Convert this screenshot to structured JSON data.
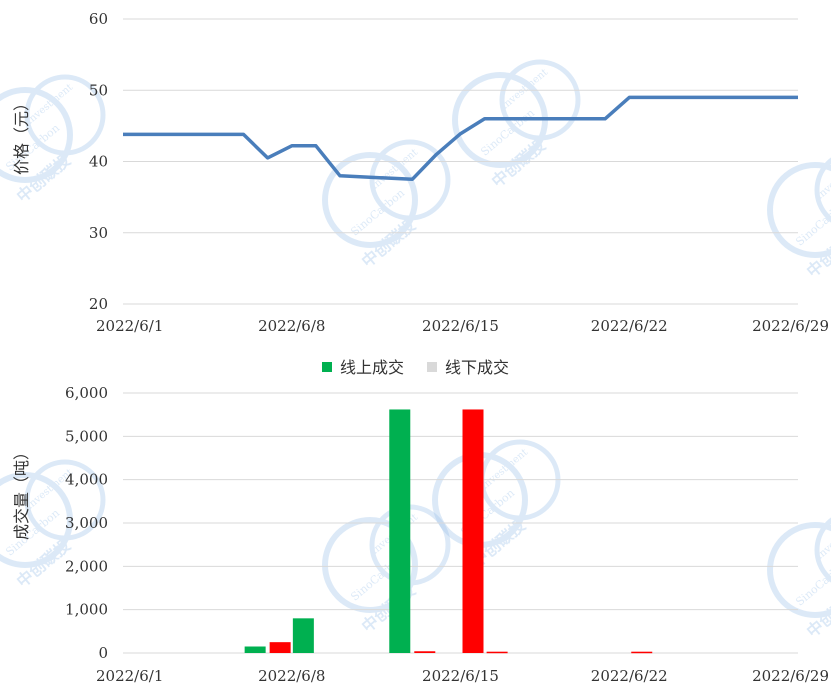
{
  "chart_data": [
    {
      "type": "line",
      "title": "",
      "xlabel": "",
      "ylabel": "价格（元）",
      "ylim": [
        20,
        60
      ],
      "yticks": [
        20,
        30,
        40,
        50,
        60
      ],
      "xlim": [
        "2022/6/1",
        "2022/6/29"
      ],
      "xticks": [
        "2022/6/1",
        "2022/6/8",
        "2022/6/15",
        "2022/6/22",
        "2022/6/29"
      ],
      "grid": true,
      "series": [
        {
          "color": "#4a7ebb",
          "x": [
            "2022/6/1",
            "2022/6/2",
            "2022/6/3",
            "2022/6/6",
            "2022/6/7",
            "2022/6/8",
            "2022/6/9",
            "2022/6/10",
            "2022/6/13",
            "2022/6/14",
            "2022/6/15",
            "2022/6/16",
            "2022/6/17",
            "2022/6/20",
            "2022/6/21",
            "2022/6/22",
            "2022/6/23",
            "2022/6/24",
            "2022/6/27",
            "2022/6/28",
            "2022/6/29"
          ],
          "values": [
            43.8,
            43.8,
            43.8,
            43.8,
            40.5,
            42.2,
            42.2,
            38.0,
            37.5,
            41.0,
            43.9,
            46.0,
            46.0,
            46.0,
            46.0,
            49.0,
            49.0,
            49.0,
            49.0,
            49.0,
            49.0
          ]
        }
      ]
    },
    {
      "type": "bar",
      "title": "",
      "xlabel": "",
      "ylabel": "成交量（吨）",
      "ylim": [
        0,
        6000
      ],
      "yticks": [
        "0",
        "1,000",
        "2,000",
        "3,000",
        "4,000",
        "5,000",
        "6,000"
      ],
      "xlim": [
        "2022/6/1",
        "2022/6/29"
      ],
      "xticks": [
        "2022/6/1",
        "2022/6/8",
        "2022/6/15",
        "2022/6/22",
        "2022/6/29"
      ],
      "grid": true,
      "legend_position": "top",
      "legend": [
        {
          "label": "线上成交",
          "color": "#00b050"
        },
        {
          "label": "线下成交",
          "color": "#d9d9d9"
        }
      ],
      "bars": [
        {
          "date": "2022/6/7",
          "online": 150,
          "offline": 250
        },
        {
          "date": "2022/6/9",
          "online": 800,
          "offline": 0
        },
        {
          "date": "2022/6/13",
          "online": 5620,
          "offline": 40
        },
        {
          "date": "2022/6/15",
          "online": 0,
          "offline": 5620
        },
        {
          "date": "2022/6/16",
          "online": 0,
          "offline": 30
        },
        {
          "date": "2022/6/22",
          "online": 0,
          "offline": 30
        }
      ],
      "offline_bar_color": "#ff0000"
    }
  ],
  "watermark": {
    "brand": "SinoCarbon",
    "sub": "Investment",
    "cn": "中创碳投",
    "color": "#9ec3ea"
  }
}
